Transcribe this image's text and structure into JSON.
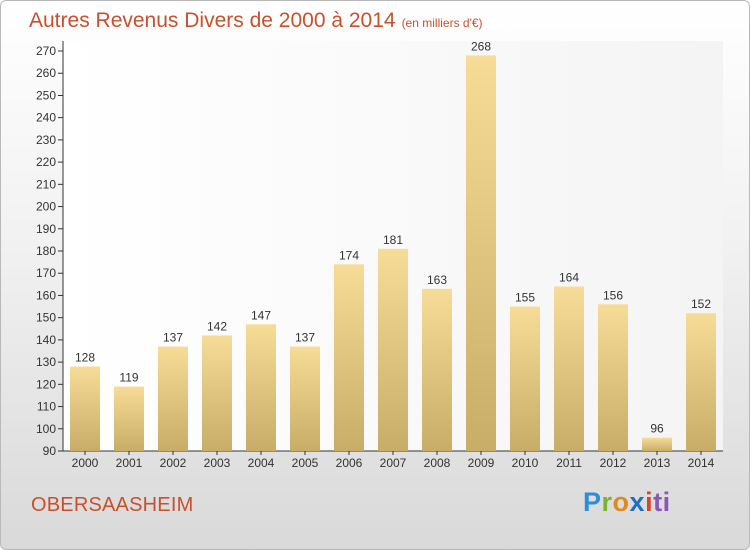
{
  "title": "Autres Revenus Divers de 2000 à 2014",
  "title_unit": "(en milliers d'€)",
  "place": "OBERSAASHEIM",
  "logo": [
    "P",
    "r",
    "o",
    "x",
    "i",
    "ti"
  ],
  "colors": {
    "title": "#c8502c",
    "bar_light": "#f7dc97",
    "bar_dark": "#c8ad68"
  },
  "chart_data": {
    "type": "bar",
    "title": "Autres Revenus Divers de 2000 à 2014",
    "ylabel": "",
    "xlabel": "",
    "categories": [
      "2000",
      "2001",
      "2002",
      "2003",
      "2004",
      "2005",
      "2006",
      "2007",
      "2008",
      "2009",
      "2010",
      "2011",
      "2012",
      "2013",
      "2014"
    ],
    "values": [
      128,
      119,
      137,
      142,
      147,
      137,
      174,
      181,
      163,
      268,
      155,
      164,
      156,
      96,
      152
    ],
    "ylim": [
      90,
      270
    ],
    "yticks": [
      90,
      100,
      110,
      120,
      130,
      140,
      150,
      160,
      170,
      180,
      190,
      200,
      210,
      220,
      230,
      240,
      250,
      260,
      270
    ],
    "grid": false,
    "legend": "none"
  }
}
